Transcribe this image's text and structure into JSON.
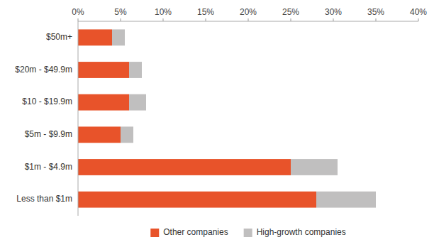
{
  "chart_data": {
    "type": "bar",
    "orientation": "horizontal",
    "stacked": true,
    "categories": [
      "$50m+",
      "$20m - $49.9m",
      "$10 - $19.9m",
      "$5m - $9.9m",
      "$1m - $4.9m",
      "Less than $1m"
    ],
    "series": [
      {
        "name": "Other companies",
        "color": "#E8532A",
        "values": [
          4.0,
          6.0,
          6.0,
          5.0,
          25.0,
          28.0
        ]
      },
      {
        "name": "High-growth companies",
        "color": "#C0BFBF",
        "values": [
          1.5,
          1.5,
          2.0,
          1.5,
          5.5,
          7.0
        ]
      }
    ],
    "xlim": [
      0,
      40
    ],
    "xticks": [
      {
        "value": 0,
        "label": "0%"
      },
      {
        "value": 5,
        "label": "5%"
      },
      {
        "value": 10,
        "label": "10%"
      },
      {
        "value": 15,
        "label": "15%"
      },
      {
        "value": 20,
        "label": "20%"
      },
      {
        "value": 25,
        "label": "25%"
      },
      {
        "value": 30,
        "label": "30%"
      },
      {
        "value": 35,
        "label": "35%"
      },
      {
        "value": 40,
        "label": "40%"
      }
    ],
    "grid": false,
    "legend": "bottom"
  }
}
